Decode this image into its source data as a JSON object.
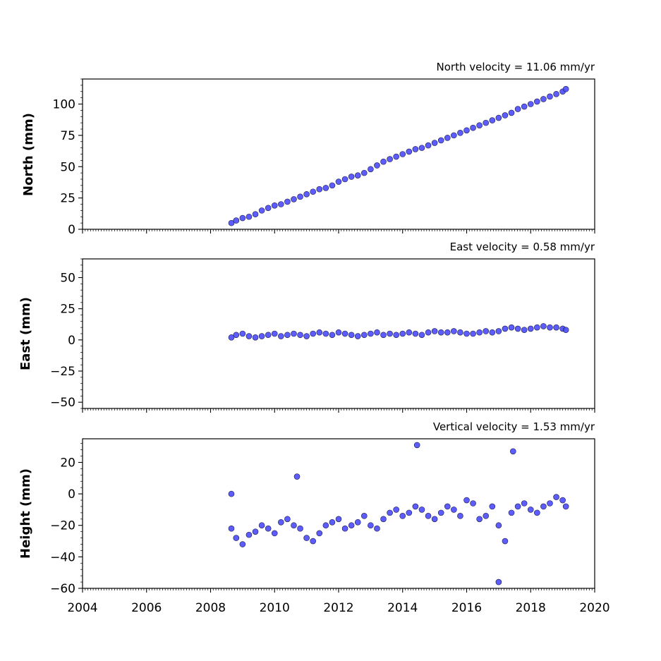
{
  "chart_data": [
    {
      "type": "scatter",
      "title": "North velocity = 11.06 mm/yr",
      "xlabel": "",
      "ylabel": "North (mm)",
      "xlim": [
        2004,
        2020
      ],
      "ylim": [
        0,
        120
      ],
      "yticks": [
        0,
        25,
        50,
        75,
        100
      ],
      "ytick_labels": [
        "0",
        "25",
        "50",
        "75",
        "100"
      ],
      "xticks": [
        2004,
        2006,
        2008,
        2010,
        2012,
        2014,
        2016,
        2018,
        2020
      ],
      "grid": false,
      "marker_color": "#4b4bff",
      "marker_edge": "#1a1a40",
      "series": [
        {
          "x": [
            2008.65,
            2008.8,
            2009.0,
            2009.2,
            2009.4,
            2009.6,
            2009.8,
            2010.0,
            2010.2,
            2010.4,
            2010.6,
            2010.8,
            2011.0,
            2011.2,
            2011.4,
            2011.6,
            2011.8,
            2012.0,
            2012.2,
            2012.4,
            2012.6,
            2012.8,
            2013.0,
            2013.2,
            2013.4,
            2013.6,
            2013.8,
            2014.0,
            2014.2,
            2014.4,
            2014.6,
            2014.8,
            2015.0,
            2015.2,
            2015.4,
            2015.6,
            2015.8,
            2016.0,
            2016.2,
            2016.4,
            2016.6,
            2016.8,
            2017.0,
            2017.2,
            2017.4,
            2017.6,
            2017.8,
            2018.0,
            2018.2,
            2018.4,
            2018.6,
            2018.8,
            2019.0,
            2019.1
          ],
          "y": [
            5,
            7,
            9,
            10,
            12,
            15,
            17,
            19,
            20,
            22,
            24,
            26,
            28,
            30,
            32,
            33,
            35,
            38,
            40,
            42,
            43,
            45,
            48,
            51,
            54,
            56,
            58,
            60,
            62,
            64,
            65,
            67,
            69,
            71,
            73,
            75,
            77,
            79,
            81,
            83,
            85,
            87,
            89,
            91,
            93,
            96,
            98,
            100,
            102,
            104,
            106,
            108,
            110,
            112
          ]
        }
      ]
    },
    {
      "type": "scatter",
      "title": "East velocity = 0.58 mm/yr",
      "xlabel": "",
      "ylabel": "East (mm)",
      "xlim": [
        2004,
        2020
      ],
      "ylim": [
        -55,
        65
      ],
      "yticks": [
        -50,
        -25,
        0,
        25,
        50
      ],
      "ytick_labels": [
        "−50",
        "−25",
        "0",
        "25",
        "50"
      ],
      "xticks": [
        2004,
        2006,
        2008,
        2010,
        2012,
        2014,
        2016,
        2018,
        2020
      ],
      "grid": false,
      "marker_color": "#4b4bff",
      "marker_edge": "#1a1a40",
      "series": [
        {
          "x": [
            2008.65,
            2008.8,
            2009.0,
            2009.2,
            2009.4,
            2009.6,
            2009.8,
            2010.0,
            2010.2,
            2010.4,
            2010.6,
            2010.8,
            2011.0,
            2011.2,
            2011.4,
            2011.6,
            2011.8,
            2012.0,
            2012.2,
            2012.4,
            2012.6,
            2012.8,
            2013.0,
            2013.2,
            2013.4,
            2013.6,
            2013.8,
            2014.0,
            2014.2,
            2014.4,
            2014.6,
            2014.8,
            2015.0,
            2015.2,
            2015.4,
            2015.6,
            2015.8,
            2016.0,
            2016.2,
            2016.4,
            2016.6,
            2016.8,
            2017.0,
            2017.2,
            2017.4,
            2017.6,
            2017.8,
            2018.0,
            2018.2,
            2018.4,
            2018.6,
            2018.8,
            2019.0,
            2019.1
          ],
          "y": [
            2,
            4,
            5,
            3,
            2,
            3,
            4,
            5,
            3,
            4,
            5,
            4,
            3,
            5,
            6,
            5,
            4,
            6,
            5,
            4,
            3,
            4,
            5,
            6,
            4,
            5,
            4,
            5,
            6,
            5,
            4,
            6,
            7,
            6,
            6,
            7,
            6,
            5,
            5,
            6,
            7,
            6,
            7,
            9,
            10,
            9,
            8,
            9,
            10,
            11,
            10,
            10,
            9,
            8
          ]
        }
      ]
    },
    {
      "type": "scatter",
      "title": "Vertical velocity = 1.53 mm/yr",
      "xlabel": "",
      "ylabel": "Height (mm)",
      "xlim": [
        2004,
        2020
      ],
      "ylim": [
        -60,
        35
      ],
      "yticks": [
        -60,
        -40,
        -20,
        0,
        20
      ],
      "ytick_labels": [
        "−60",
        "−40",
        "−20",
        "0",
        "20"
      ],
      "xticks": [
        2004,
        2006,
        2008,
        2010,
        2012,
        2014,
        2016,
        2018,
        2020
      ],
      "xtick_labels": [
        "2004",
        "2006",
        "2008",
        "2010",
        "2012",
        "2014",
        "2016",
        "2018",
        "2020"
      ],
      "grid": false,
      "marker_color": "#4b4bff",
      "marker_edge": "#1a1a40",
      "series": [
        {
          "x": [
            2008.65,
            2008.8,
            2009.0,
            2009.2,
            2009.4,
            2009.6,
            2009.8,
            2010.0,
            2010.2,
            2010.4,
            2010.6,
            2010.8,
            2011.0,
            2011.2,
            2011.4,
            2011.6,
            2011.8,
            2012.0,
            2012.2,
            2012.4,
            2012.6,
            2012.8,
            2013.0,
            2013.2,
            2013.4,
            2013.6,
            2013.8,
            2014.0,
            2014.2,
            2014.4,
            2014.6,
            2014.8,
            2015.0,
            2015.2,
            2015.4,
            2015.6,
            2015.8,
            2016.0,
            2016.2,
            2016.4,
            2016.6,
            2016.8,
            2017.0,
            2017.2,
            2017.4,
            2017.6,
            2017.8,
            2018.0,
            2018.2,
            2018.4,
            2018.6,
            2018.8,
            2019.0,
            2019.1,
            2014.45,
            2017.45,
            2017.0,
            2008.65,
            2010.7
          ],
          "y": [
            -22,
            -28,
            -32,
            -26,
            -24,
            -20,
            -22,
            -25,
            -18,
            -16,
            -20,
            -22,
            -28,
            -30,
            -25,
            -20,
            -18,
            -16,
            -22,
            -20,
            -18,
            -14,
            -20,
            -22,
            -16,
            -12,
            -10,
            -14,
            -12,
            -8,
            -10,
            -14,
            -16,
            -12,
            -8,
            -10,
            -14,
            -4,
            -6,
            -16,
            -14,
            -8,
            -20,
            -30,
            -12,
            -8,
            -6,
            -10,
            -12,
            -8,
            -6,
            -2,
            -4,
            -8,
            31,
            27,
            -56,
            0,
            11
          ]
        }
      ]
    }
  ]
}
